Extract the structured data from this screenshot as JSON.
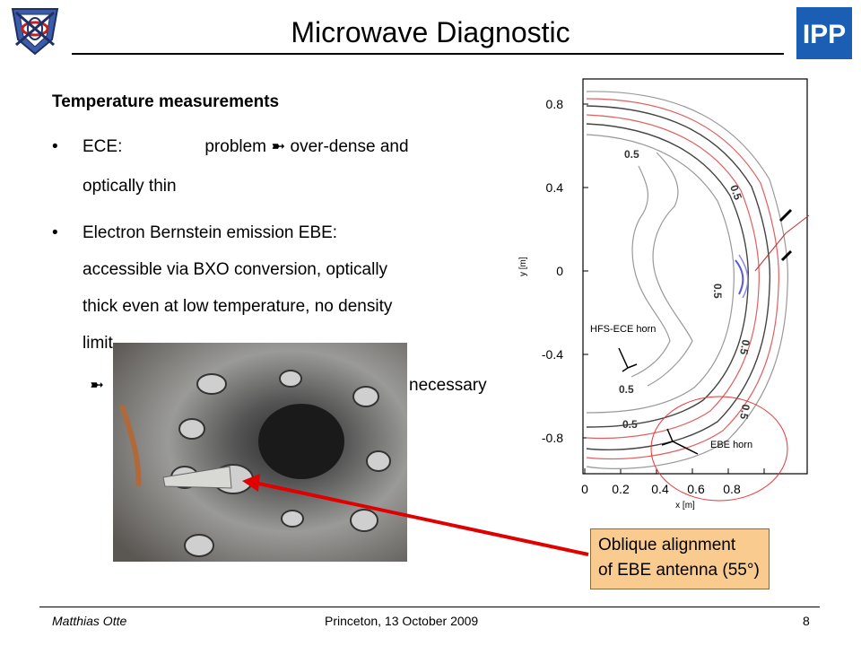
{
  "slide": {
    "title": "Microwave Diagnostic",
    "heading": "Temperature measurements",
    "bullets": [
      {
        "marker": "•",
        "label": "ECE:",
        "mid": "problem",
        "arrow": "➼",
        "rest": "over-dense and",
        "line2": "optically thin"
      },
      {
        "marker": "•",
        "line1": "Electron Bernstein emission  EBE:",
        "line2": "accessible via BXO conversion, optically",
        "line3": "thick even at low temperature, no density",
        "line4": "limit"
      }
    ],
    "note": {
      "arrow": "➼",
      "tail": "necessary"
    }
  },
  "plot": {
    "y_tick_labels": [
      "0.8",
      "0.4",
      "0",
      "-0.4",
      "-0.8"
    ],
    "x_tick_labels": [
      "0",
      "0.2",
      "0.4",
      "0.6",
      "0.8"
    ],
    "xlabel": "x [m]",
    "ylabel": "y [m]",
    "contour_labels": [
      "0.5",
      "0.5",
      "0.5",
      "0.5",
      "0.5",
      "0.5",
      "0.5"
    ],
    "annotations": {
      "hfs": "HFS-ECE horn",
      "ebe": "EBE horn"
    }
  },
  "callout": {
    "line1": "Oblique alignment",
    "line2": "of EBE antenna (55°)"
  },
  "footer": {
    "author": "Matthias Otte",
    "event": "Princeton, 13 October 2009",
    "page": "8"
  },
  "colors": {
    "callout_fill": "#f9cb8f",
    "callout_arrow": "#e00000",
    "ipp_blue": "#1a5fb4",
    "contour_red": "#e06060",
    "contour_gray": "#888888"
  },
  "icons": {
    "left_logo": "stellarator-logo",
    "right_logo": "ipp-logo"
  }
}
